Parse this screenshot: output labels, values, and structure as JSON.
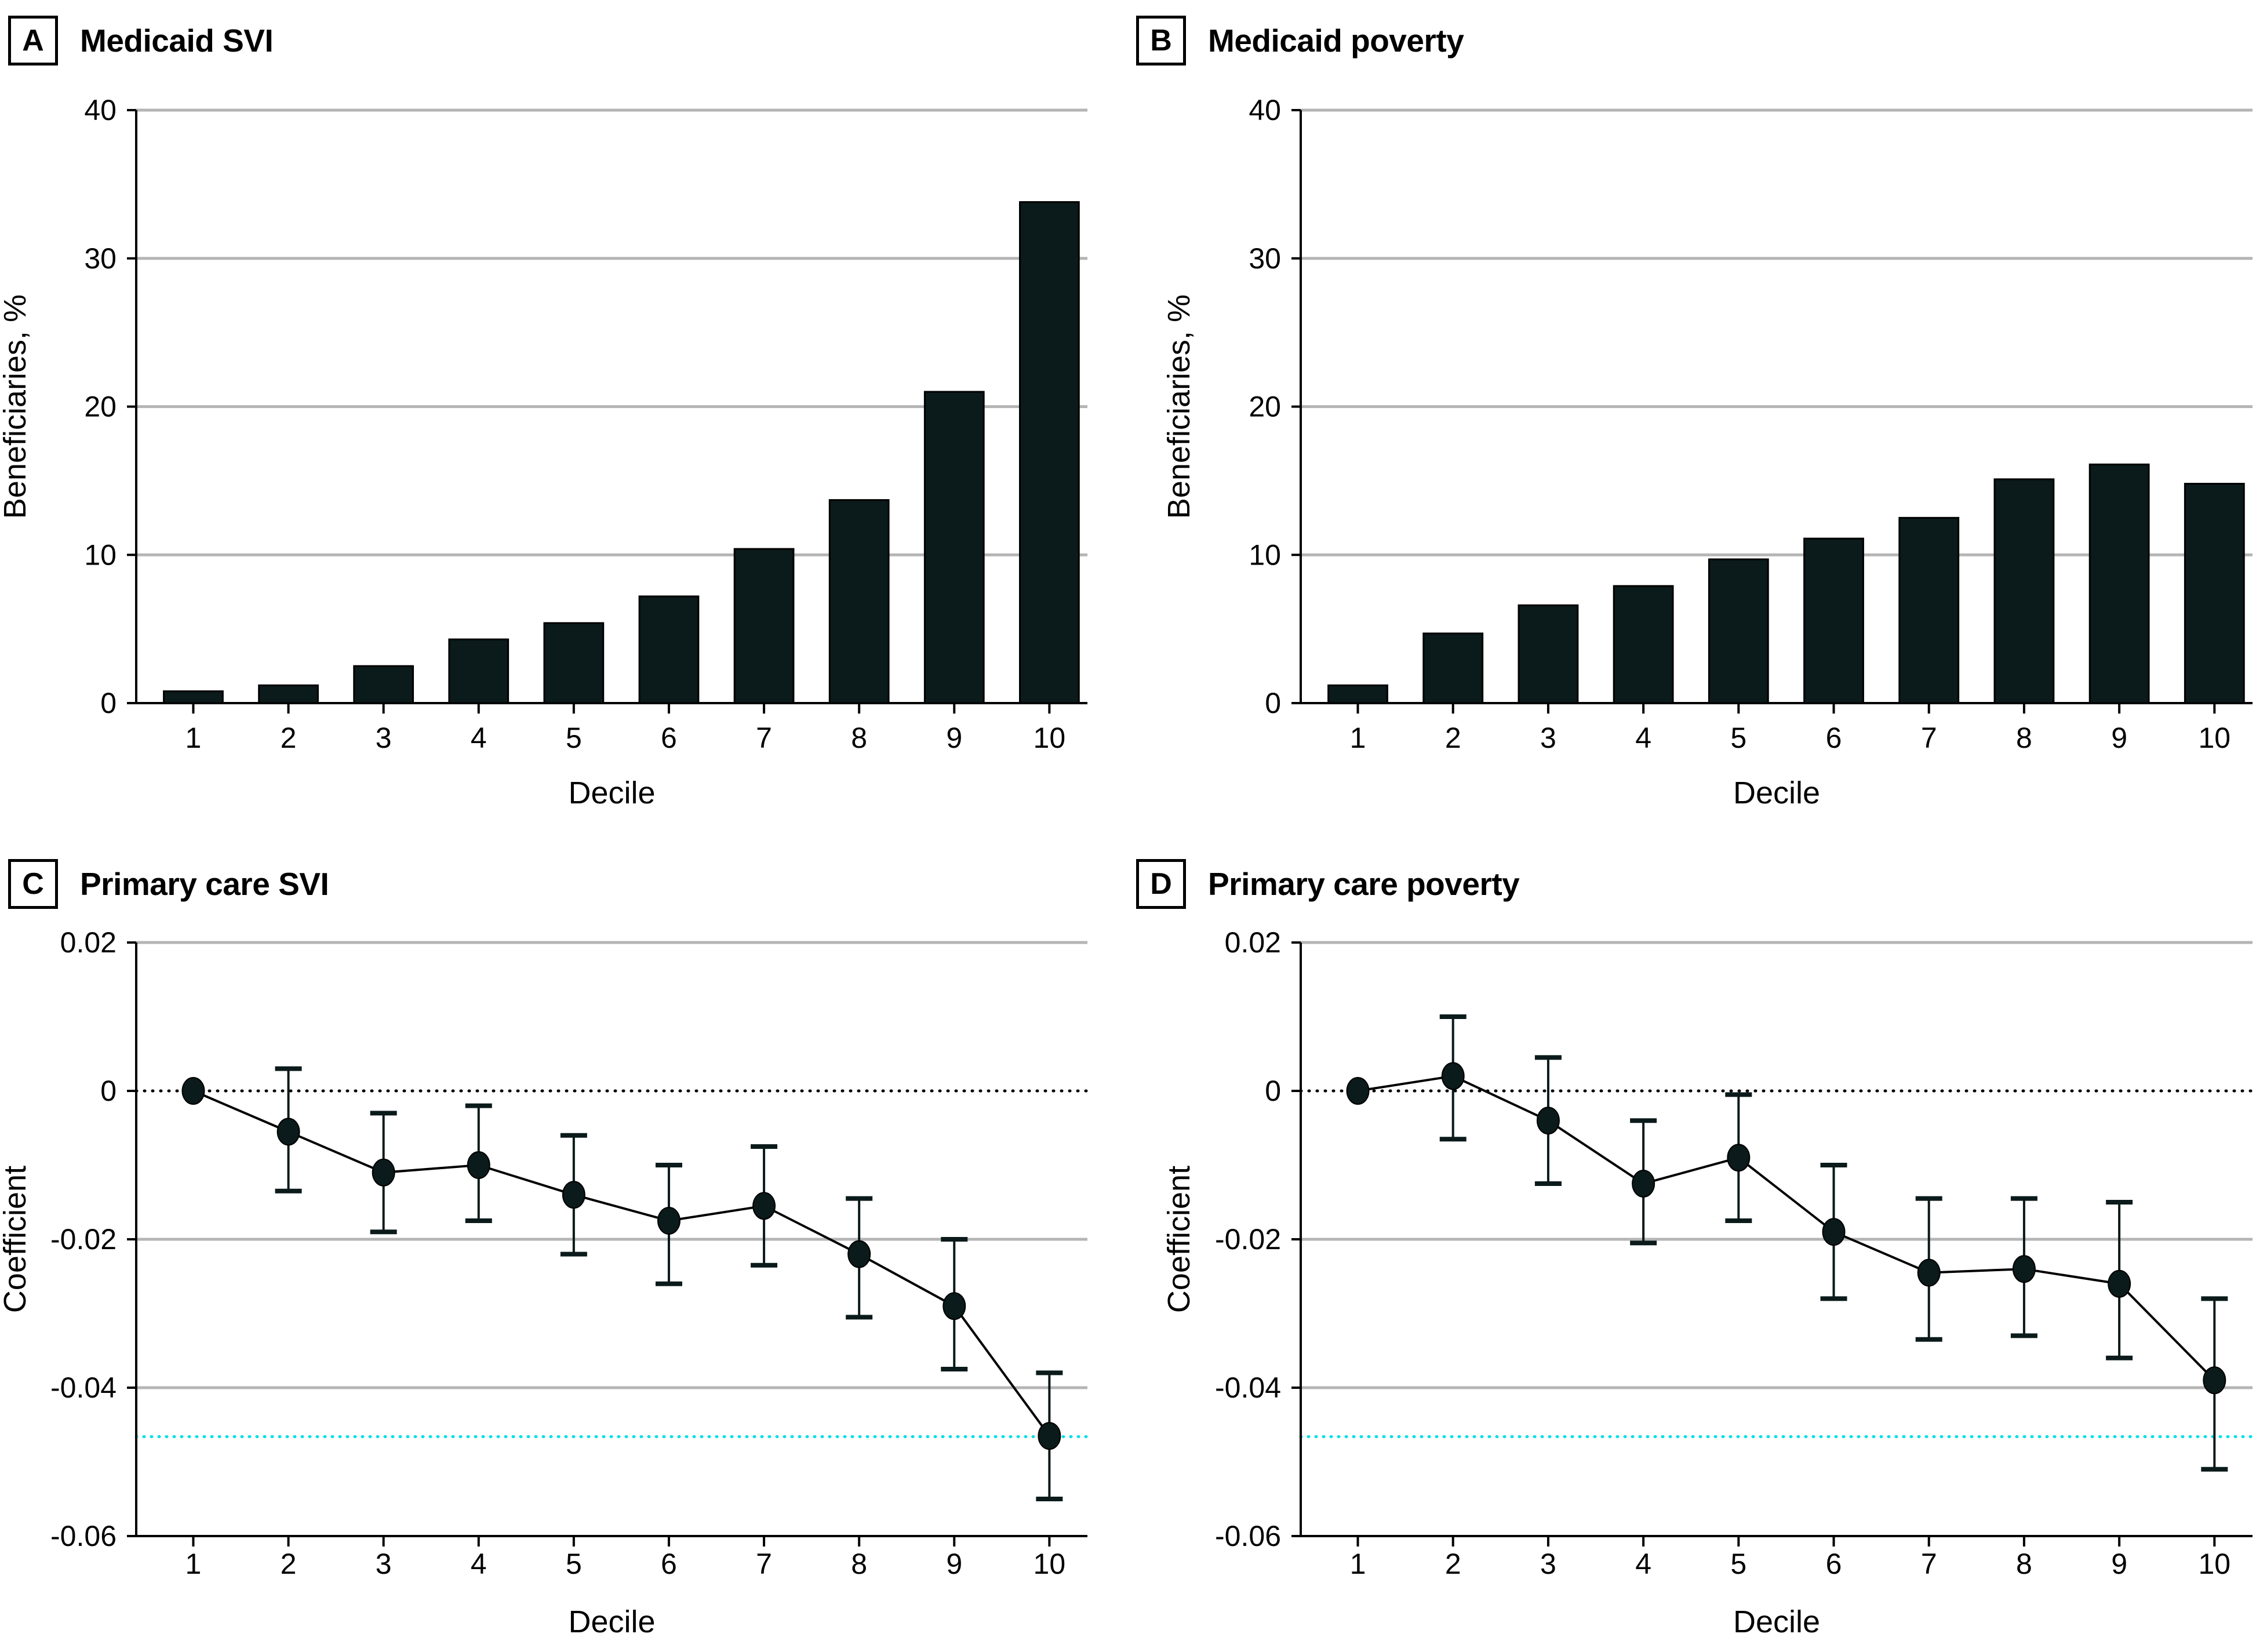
{
  "figure": {
    "background": "#ffffff",
    "series_color": "#0b1a1a",
    "series_stroke": "#000000",
    "gridline_color": "#b5b5b5",
    "axis_color": "#000000",
    "zero_line_color": "#000000",
    "reference_line_color": "#00dfe9"
  },
  "chart_data": [
    {
      "panel_letter": "A",
      "title": "Medicaid SVI",
      "type": "bar",
      "xlabel": "Decile",
      "ylabel": "Beneficiaries, %",
      "ylim": [
        0,
        40
      ],
      "grid": true,
      "legend": "none",
      "categories": [
        "1",
        "2",
        "3",
        "4",
        "5",
        "6",
        "7",
        "8",
        "9",
        "10"
      ],
      "values": [
        0.8,
        1.2,
        2.5,
        4.3,
        5.4,
        7.2,
        10.4,
        13.7,
        21.0,
        33.8
      ],
      "yticks": [
        {
          "v": 0,
          "label": "0"
        },
        {
          "v": 10,
          "label": "10"
        },
        {
          "v": 20,
          "label": "20"
        },
        {
          "v": 30,
          "label": "30"
        },
        {
          "v": 40,
          "label": "40"
        }
      ],
      "gridlines": [
        10,
        20,
        30,
        40
      ]
    },
    {
      "panel_letter": "B",
      "title": "Medicaid poverty",
      "type": "bar",
      "xlabel": "Decile",
      "ylabel": "Beneficiaries, %",
      "ylim": [
        0,
        40
      ],
      "grid": true,
      "legend": "none",
      "categories": [
        "1",
        "2",
        "3",
        "4",
        "5",
        "6",
        "7",
        "8",
        "9",
        "10"
      ],
      "values": [
        1.2,
        4.7,
        6.6,
        7.9,
        9.7,
        11.1,
        12.5,
        15.1,
        16.1,
        14.8
      ],
      "yticks": [
        {
          "v": 0,
          "label": "0"
        },
        {
          "v": 10,
          "label": "10"
        },
        {
          "v": 20,
          "label": "20"
        },
        {
          "v": 30,
          "label": "30"
        },
        {
          "v": 40,
          "label": "40"
        }
      ],
      "gridlines": [
        10,
        20,
        30,
        40
      ]
    },
    {
      "panel_letter": "C",
      "title": "Primary care SVI",
      "type": "line-error",
      "xlabel": "Decile",
      "ylabel": "Coefficient",
      "ylim": [
        -0.06,
        0.02
      ],
      "grid": true,
      "legend": "none",
      "categories": [
        "1",
        "2",
        "3",
        "4",
        "5",
        "6",
        "7",
        "8",
        "9",
        "10"
      ],
      "values": [
        0,
        -0.0055,
        -0.011,
        -0.01,
        -0.014,
        -0.0175,
        -0.0155,
        -0.022,
        -0.029,
        -0.0465
      ],
      "ci_low": [
        null,
        -0.0135,
        -0.019,
        -0.0175,
        -0.022,
        -0.026,
        -0.0235,
        -0.0305,
        -0.0375,
        -0.055
      ],
      "ci_high": [
        null,
        0.003,
        -0.003,
        -0.002,
        -0.006,
        -0.01,
        -0.0075,
        -0.0145,
        -0.02,
        -0.038
      ],
      "yticks": [
        {
          "v": 0.02,
          "label": "0.02"
        },
        {
          "v": 0,
          "label": "0"
        },
        {
          "v": -0.02,
          "label": "-0.02"
        },
        {
          "v": -0.04,
          "label": "-0.04"
        },
        {
          "v": -0.06,
          "label": "-0.06"
        }
      ],
      "gridlines": [
        0.02,
        -0.02,
        -0.04
      ],
      "zero_line": 0,
      "reference_line": {
        "value": -0.0466,
        "style": "dotted",
        "color": "#00dfe9"
      }
    },
    {
      "panel_letter": "D",
      "title": "Primary care poverty",
      "type": "line-error",
      "xlabel": "Decile",
      "ylabel": "Coefficient",
      "ylim": [
        -0.06,
        0.02
      ],
      "grid": true,
      "legend": "none",
      "categories": [
        "1",
        "2",
        "3",
        "4",
        "5",
        "6",
        "7",
        "8",
        "9",
        "10"
      ],
      "values": [
        0,
        0.002,
        -0.004,
        -0.0125,
        -0.009,
        -0.019,
        -0.0245,
        -0.024,
        -0.026,
        -0.039
      ],
      "ci_low": [
        null,
        -0.0065,
        -0.0125,
        -0.0205,
        -0.0175,
        -0.028,
        -0.0335,
        -0.033,
        -0.036,
        -0.051
      ],
      "ci_high": [
        null,
        0.01,
        0.0045,
        -0.004,
        -0.0005,
        -0.01,
        -0.0145,
        -0.0145,
        -0.015,
        -0.028
      ],
      "yticks": [
        {
          "v": 0.02,
          "label": "0.02"
        },
        {
          "v": 0,
          "label": "0"
        },
        {
          "v": -0.02,
          "label": "-0.02"
        },
        {
          "v": -0.04,
          "label": "-0.04"
        },
        {
          "v": -0.06,
          "label": "-0.06"
        }
      ],
      "gridlines": [
        0.02,
        -0.02,
        -0.04
      ],
      "zero_line": 0,
      "reference_line": {
        "value": -0.0466,
        "style": "dotted",
        "color": "#00dfe9"
      }
    }
  ]
}
